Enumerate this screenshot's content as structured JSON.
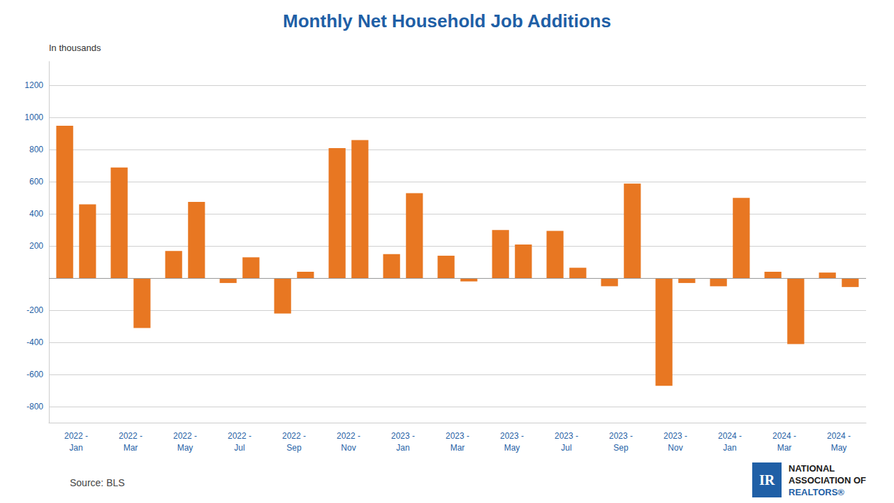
{
  "chart_data": {
    "type": "bar",
    "title": "Monthly Net Household Job Additions",
    "subtitle": "In thousands",
    "source": "Source: BLS",
    "annotations": [
      "IR",
      "NATIONAL",
      "ASSOCIATION OF",
      "REALTORS®"
    ],
    "categories": [
      "2022 -\nJan",
      "2022 -\nMar",
      "2022 -\nMay",
      "2022 -\nJul",
      "2022 -\nSep",
      "2022 -\nNov",
      "2023 -\nJan",
      "2023 -\nMar",
      "2023 -\nMay",
      "2023 -\nJul",
      "2023 -\nSep",
      "2023 -\nNov",
      "2024 -\nJan",
      "2024 -\nMar",
      "2024 -\nMay"
    ],
    "series": [
      {
        "color": "#E87722",
        "values": [
          950,
          690,
          170,
          -30,
          -220,
          810,
          150,
          140,
          300,
          295,
          -50,
          -670,
          -50,
          40,
          35
        ]
      },
      {
        "color": "#E87722",
        "values": [
          460,
          -310,
          475,
          130,
          40,
          860,
          530,
          -20,
          210,
          65,
          590,
          -30,
          500,
          -410,
          -55
        ]
      }
    ],
    "ylim": [
      -900,
      1350
    ],
    "yticks": [
      -800,
      -600,
      -400,
      -200,
      200,
      400,
      600,
      800,
      1000,
      1200
    ],
    "grid": true
  }
}
